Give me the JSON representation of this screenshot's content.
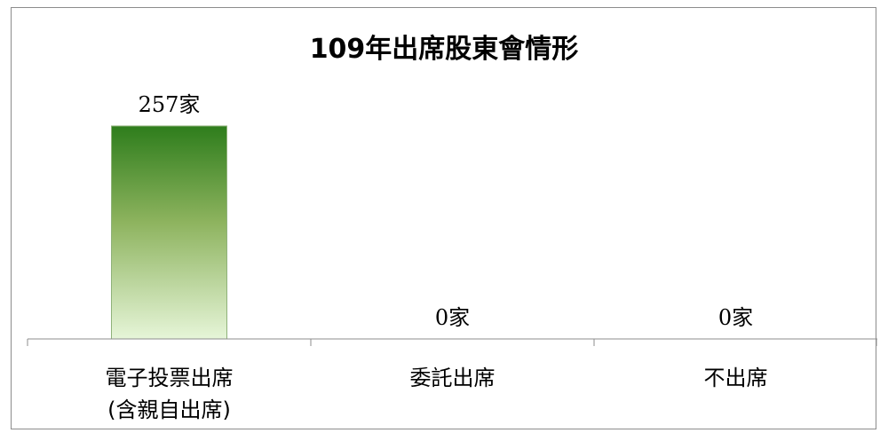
{
  "chart_data": {
    "type": "bar",
    "title": "109年出席股東會情形",
    "categories": [
      [
        "電子投票出席",
        "(含親自出席)"
      ],
      [
        "委託出席"
      ],
      [
        "不出席"
      ]
    ],
    "values": [
      257,
      0,
      0
    ],
    "unit_suffix": "家",
    "ylim": [
      0,
      257
    ],
    "grid": false,
    "legend": "none",
    "bar_colors": {
      "top": "#2e7d1c",
      "bottom": "#e6f5d8",
      "edge": "#8fb27a"
    }
  }
}
